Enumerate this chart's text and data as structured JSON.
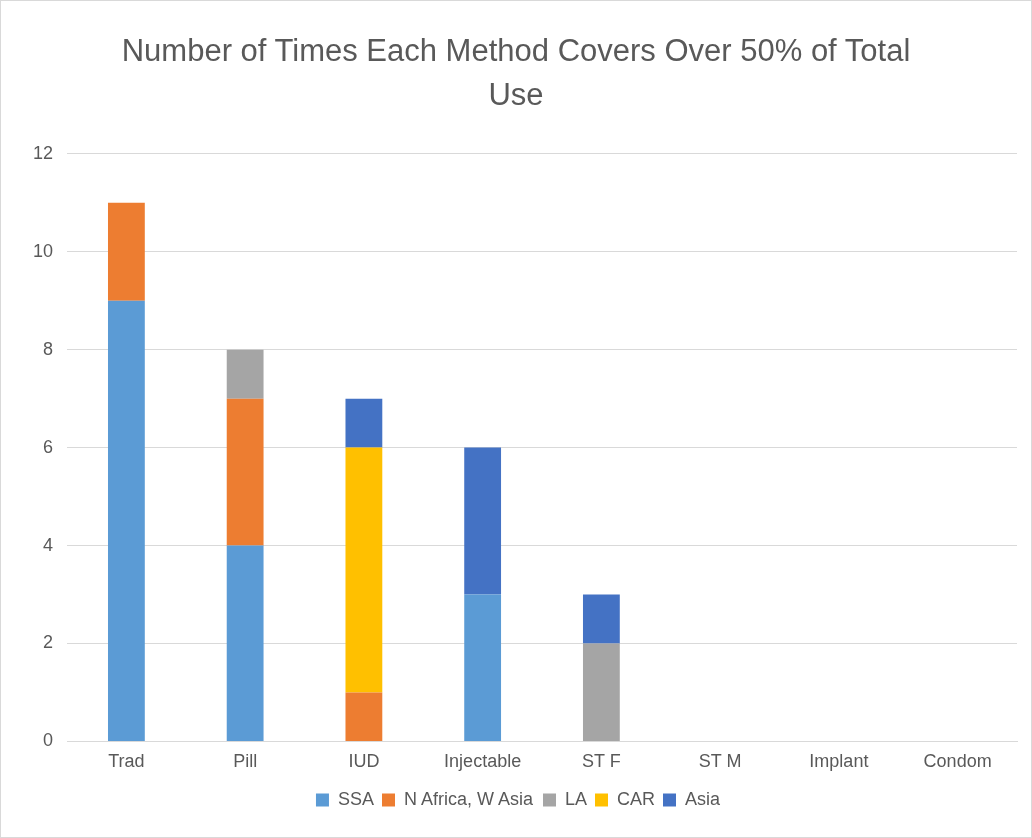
{
  "chart_data": {
    "type": "bar",
    "title": "Number of Times Each Method Covers Over 50% of Total Use",
    "categories": [
      "Trad",
      "Pill",
      "IUD",
      "Injectable",
      "ST F",
      "ST M",
      "Implant",
      "Condom"
    ],
    "stacked": true,
    "series": [
      {
        "name": "SSA",
        "color": "#5b9bd5",
        "values": [
          9,
          4,
          0,
          3,
          0,
          0,
          0,
          0
        ]
      },
      {
        "name": "N Africa, W Asia",
        "color": "#ed7d31",
        "values": [
          2,
          3,
          1,
          0,
          0,
          0,
          0,
          0
        ]
      },
      {
        "name": "LA",
        "color": "#a5a5a5",
        "values": [
          0,
          1,
          0,
          0,
          2,
          0,
          0,
          0
        ]
      },
      {
        "name": "CAR",
        "color": "#ffc000",
        "values": [
          0,
          0,
          5,
          0,
          0,
          0,
          0,
          0
        ]
      },
      {
        "name": "Asia",
        "color": "#4472c4",
        "values": [
          0,
          0,
          1,
          3,
          1,
          0,
          0,
          0
        ]
      }
    ],
    "ylim": [
      0,
      12
    ],
    "yticks": [
      0,
      2,
      4,
      6,
      8,
      10,
      12
    ],
    "grid": "y",
    "legend": "bottom"
  }
}
